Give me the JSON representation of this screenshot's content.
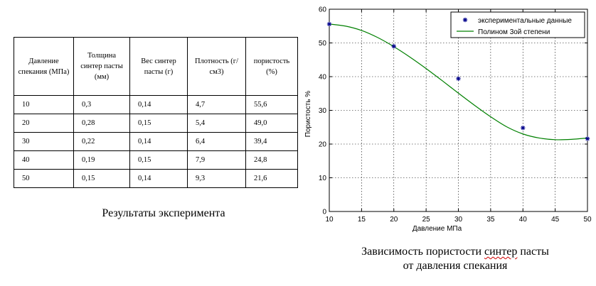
{
  "table": {
    "headers": [
      "Давление спекания (МПа)",
      "Толщина синтер пасты (мм)",
      "Вес синтер пасты (г)",
      "Плотность (г/см3)",
      "пористость (%)"
    ],
    "rows": [
      [
        "10",
        "0,3",
        "0,14",
        "4,7",
        "55,6"
      ],
      [
        "20",
        "0,28",
        "0,15",
        "5,4",
        "49,0"
      ],
      [
        "30",
        "0,22",
        "0,14",
        "6,4",
        "39,4"
      ],
      [
        "40",
        "0,19",
        "0,15",
        "7,9",
        "24,8"
      ],
      [
        "50",
        "0,15",
        "0,14",
        "9,3",
        "21,6"
      ]
    ],
    "caption": "Результаты эксперимента"
  },
  "chart_caption": {
    "line1_prefix": "Зависимость пористости ",
    "line1_flagged": "синтер",
    "line1_suffix": " пасты",
    "line2": "от давления спекания"
  },
  "chart_data": {
    "type": "scatter",
    "xlabel": "Давление МПа",
    "ylabel": "Пористость %",
    "xlim": [
      10,
      50
    ],
    "ylim": [
      0,
      60
    ],
    "xticks": [
      "10",
      "15",
      "20",
      "25",
      "30",
      "35",
      "40",
      "45",
      "50"
    ],
    "yticks": [
      "0",
      "10",
      "20",
      "30",
      "40",
      "50",
      "60"
    ],
    "grid": true,
    "legend_position": "top-right",
    "series": [
      {
        "name": "экспериментальные данные",
        "kind": "markers",
        "marker": "star",
        "color": "#00008b",
        "x": [
          10,
          20,
          30,
          40,
          50
        ],
        "y": [
          55.6,
          49.0,
          39.4,
          24.8,
          21.6
        ]
      },
      {
        "name": "Полином 3ой степени",
        "kind": "line",
        "color": "#008000",
        "x": [
          10,
          12.5,
          15,
          17.5,
          20,
          22.5,
          25,
          27.5,
          30,
          32.5,
          35,
          37.5,
          40,
          42.5,
          45,
          47.5,
          50
        ],
        "y": [
          55.6,
          55.0,
          53.7,
          51.6,
          48.9,
          45.8,
          42.4,
          38.8,
          35.1,
          31.5,
          28.1,
          25.1,
          23.0,
          21.8,
          21.3,
          21.4,
          21.8
        ]
      }
    ]
  }
}
